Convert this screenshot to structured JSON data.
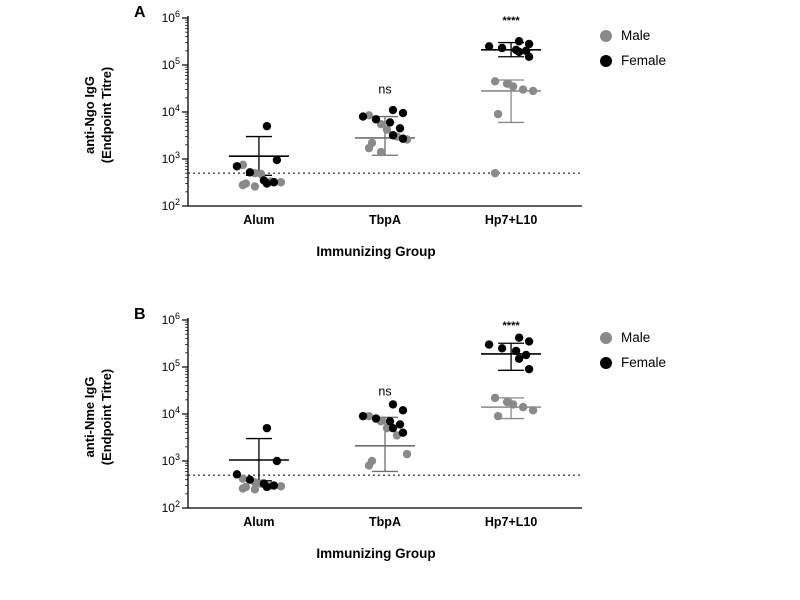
{
  "figure": {
    "background": "#ffffff",
    "accent_black": "#000000",
    "accent_gray": "#8a8a8a"
  },
  "panels": [
    {
      "label": "A",
      "chart_data": {
        "type": "scatter",
        "title": "",
        "xlabel": "Immunizing Group",
        "ylabel": "anti-Ngo IgG (Endpoint Titre)",
        "ylabel_lines": [
          "anti-Ngo IgG",
          "(Endpoint Titre)"
        ],
        "categories": [
          "Alum",
          "TbpA",
          "Hp7+L10"
        ],
        "ylim": [
          100,
          1000000
        ],
        "yscale": "log",
        "yticks": [
          {
            "value": 100,
            "base": "10",
            "exp": "2"
          },
          {
            "value": 1000,
            "base": "10",
            "exp": "3"
          },
          {
            "value": 10000,
            "base": "10",
            "exp": "4"
          },
          {
            "value": 100000,
            "base": "10",
            "exp": "5"
          },
          {
            "value": 1000000,
            "base": "10",
            "exp": "6"
          }
        ],
        "threshold": 500,
        "legend_position": "right",
        "series": [
          {
            "name": "Male",
            "color": "#8a8a8a",
            "groups": [
              [
                750,
                500,
                480,
                330,
                320,
                300,
                280,
                260
              ],
              [
                8500,
                5500,
                4200,
                3000,
                2600,
                2200,
                1700,
                1400
              ],
              [
                45000,
                40000,
                35000,
                30000,
                28000,
                9000,
                500
              ]
            ]
          },
          {
            "name": "Female",
            "color": "#000000",
            "groups": [
              [
                5000,
                950,
                700,
                520,
                350,
                320,
                300
              ],
              [
                11000,
                9500,
                8000,
                7000,
                6000,
                4500,
                3200,
                2700
              ],
              [
                320000,
                280000,
                250000,
                230000,
                210000,
                200000,
                190000,
                150000
              ]
            ]
          }
        ],
        "stats": [
          [
            {
              "center": 1150,
              "upper": 3000,
              "lower": 450,
              "color": "#000000"
            }
          ],
          [
            {
              "center": 2800,
              "upper": 8000,
              "lower": 1200,
              "color": "#6e6e6e"
            }
          ],
          [
            {
              "center": 210000,
              "upper": 300000,
              "lower": 150000,
              "color": "#000000"
            },
            {
              "center": 28000,
              "upper": 48000,
              "lower": 6000,
              "color": "#8a8a8a"
            }
          ]
        ],
        "annotations": [
          {
            "group": 1,
            "text": "ns",
            "value": 25000
          },
          {
            "group": 2,
            "text": "****",
            "value": 750000
          }
        ]
      }
    },
    {
      "label": "B",
      "chart_data": {
        "type": "scatter",
        "title": "",
        "xlabel": "Immunizing Group",
        "ylabel": "anti-Nme IgG (Endpoint Titre)",
        "ylabel_lines": [
          "anti-Nme IgG",
          "(Endpoint Titre)"
        ],
        "categories": [
          "Alum",
          "TbpA",
          "Hp7+L10"
        ],
        "ylim": [
          100,
          1000000
        ],
        "yscale": "log",
        "yticks": [
          {
            "value": 100,
            "base": "10",
            "exp": "2"
          },
          {
            "value": 1000,
            "base": "10",
            "exp": "3"
          },
          {
            "value": 10000,
            "base": "10",
            "exp": "4"
          },
          {
            "value": 100000,
            "base": "10",
            "exp": "5"
          },
          {
            "value": 1000000,
            "base": "10",
            "exp": "6"
          }
        ],
        "threshold": 500,
        "legend_position": "right",
        "series": [
          {
            "name": "Male",
            "color": "#8a8a8a",
            "groups": [
              [
                420,
                350,
                330,
                300,
                290,
                280,
                260,
                250
              ],
              [
                9000,
                7000,
                5000,
                3500,
                1400,
                1000,
                800
              ],
              [
                22000,
                18000,
                16000,
                14000,
                12000,
                9000
              ]
            ]
          },
          {
            "name": "Female",
            "color": "#000000",
            "groups": [
              [
                5000,
                1000,
                520,
                400,
                330,
                300,
                280
              ],
              [
                16000,
                12000,
                9000,
                8000,
                7000,
                6000,
                5000,
                4000
              ],
              [
                420000,
                350000,
                300000,
                250000,
                220000,
                180000,
                150000,
                90000
              ]
            ]
          }
        ],
        "stats": [
          [
            {
              "center": 1050,
              "upper": 3000,
              "lower": 380,
              "color": "#000000"
            }
          ],
          [
            {
              "center": 2100,
              "upper": 8500,
              "lower": 600,
              "color": "#6e6e6e"
            }
          ],
          [
            {
              "center": 190000,
              "upper": 320000,
              "lower": 85000,
              "color": "#000000"
            },
            {
              "center": 14000,
              "upper": 22000,
              "lower": 8000,
              "color": "#8a8a8a"
            }
          ]
        ],
        "annotations": [
          {
            "group": 1,
            "text": "ns",
            "value": 25000
          },
          {
            "group": 2,
            "text": "****",
            "value": 650000
          }
        ]
      }
    }
  ]
}
